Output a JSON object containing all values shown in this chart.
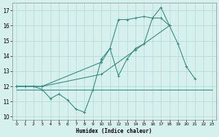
{
  "color": "#2e8b7a",
  "bg_color": "#d6f0ee",
  "grid_color": "#aed8d4",
  "xlabel": "Humidex (Indice chaleur)",
  "xlim": [
    -0.5,
    23.5
  ],
  "ylim": [
    9.8,
    17.5
  ],
  "yticks": [
    10,
    11,
    12,
    13,
    14,
    15,
    16,
    17
  ],
  "xticks": [
    0,
    1,
    2,
    3,
    4,
    5,
    6,
    7,
    8,
    9,
    10,
    11,
    12,
    13,
    14,
    15,
    16,
    17,
    18,
    19,
    20,
    21,
    22,
    23
  ],
  "line1_x": [
    0,
    1,
    2,
    3,
    4,
    5,
    6,
    7,
    8,
    9,
    10,
    11,
    12,
    13,
    14,
    15,
    16,
    17,
    18,
    19,
    20,
    21
  ],
  "line1_y": [
    12,
    12,
    12,
    11.8,
    11.2,
    11.5,
    11.1,
    10.5,
    10.3,
    11.8,
    13.8,
    14.5,
    12.7,
    13.8,
    14.5,
    14.8,
    16.5,
    16.5,
    16.0,
    14.8,
    13.3,
    12.5
  ],
  "line2_x": [
    0,
    3,
    10,
    11,
    12,
    13,
    14,
    15,
    16,
    17,
    18
  ],
  "line2_y": [
    12,
    12,
    13.6,
    14.5,
    16.4,
    16.4,
    16.5,
    16.6,
    16.5,
    17.2,
    16.0
  ],
  "line3_x": [
    0,
    3,
    10,
    14,
    18
  ],
  "line3_y": [
    12,
    12,
    12.8,
    14.4,
    16.0
  ],
  "line4_x": [
    0,
    23
  ],
  "line4_y": [
    11.8,
    11.8
  ]
}
